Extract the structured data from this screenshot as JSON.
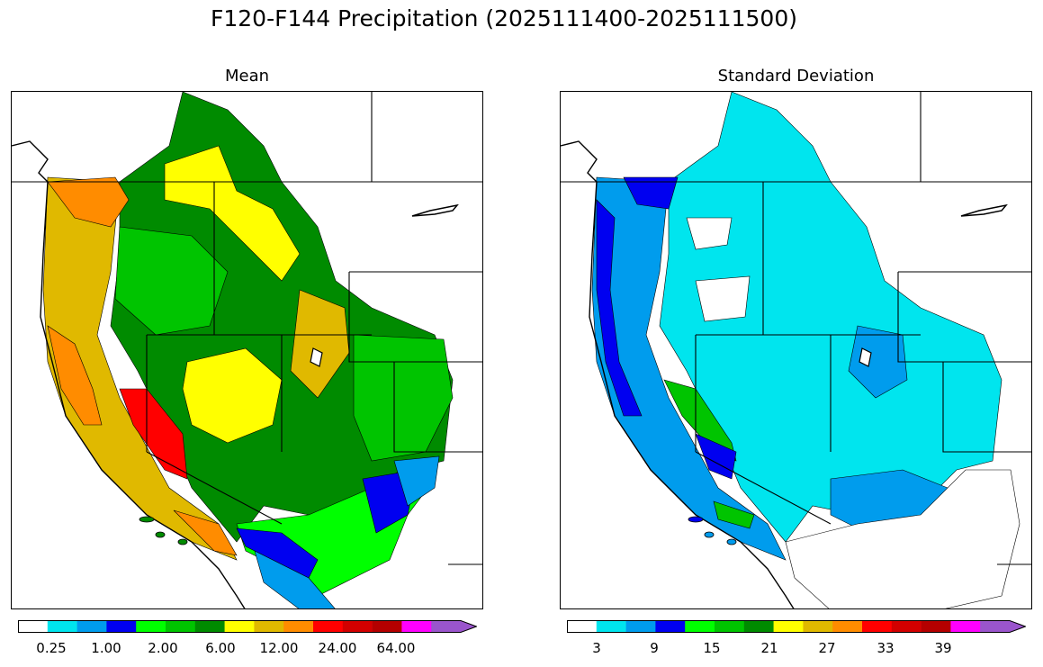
{
  "figure": {
    "title": "F120-F144 Precipitation (2025111400-2025111500)"
  },
  "panels": [
    {
      "title": "Mean",
      "colorbar": {
        "colors": [
          "#ffffff",
          "#00e5ee",
          "#009ced",
          "#0000f0",
          "#00ff00",
          "#00c400",
          "#008b00",
          "#ffff00",
          "#e0b900",
          "#ff8c00",
          "#ff0000",
          "#d20000",
          "#b40000",
          "#ff00ff",
          "#9a55cc"
        ],
        "extend": "max",
        "tick_labels": [
          "0.25",
          "1.00",
          "2.00",
          "6.00",
          "12.00",
          "24.00",
          "64.00"
        ]
      }
    },
    {
      "title": "Standard Deviation",
      "colorbar": {
        "colors": [
          "#ffffff",
          "#00e5ee",
          "#009ced",
          "#0000f0",
          "#00ff00",
          "#00c400",
          "#008b00",
          "#ffff00",
          "#e0b900",
          "#ff8c00",
          "#ff0000",
          "#d20000",
          "#b40000",
          "#ff00ff",
          "#9a55cc"
        ],
        "extend": "max",
        "tick_labels": [
          "3",
          "9",
          "15",
          "21",
          "27",
          "33",
          "39"
        ]
      }
    }
  ]
}
